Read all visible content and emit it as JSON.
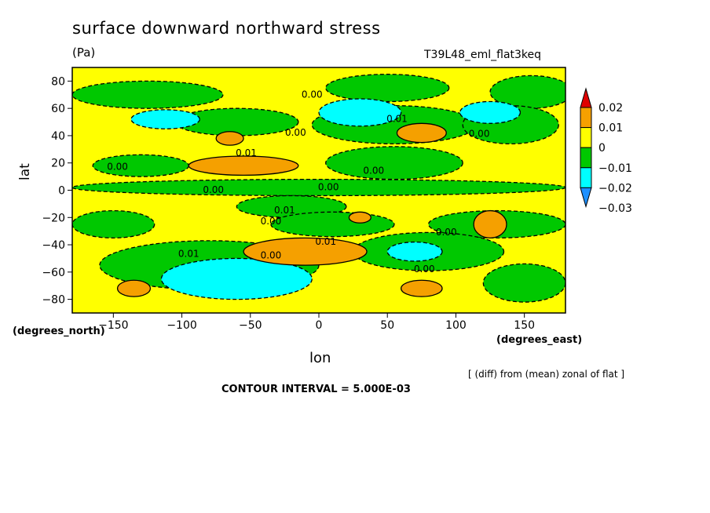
{
  "title": "surface downward northward stress",
  "units": "(Pa)",
  "run_label": "T39L48_eml_flat3keq",
  "note": "[ (diff) from (mean) zonal of flat ]",
  "contour_interval": "CONTOUR INTERVAL = 5.000E-03",
  "chart_data": {
    "type": "heatmap",
    "xlabel": "lon",
    "ylabel": "lat",
    "xunits": "(degrees_east)",
    "yunits": "(degrees_north)",
    "xlim": [
      -180,
      180
    ],
    "ylim": [
      -90,
      90
    ],
    "xticks": [
      -150,
      -100,
      -50,
      0,
      50,
      100,
      150
    ],
    "yticks": [
      80,
      60,
      40,
      20,
      0,
      -20,
      -40,
      -60,
      -80
    ],
    "colorbar": {
      "levels": [
        -0.03,
        -0.02,
        -0.01,
        0,
        0.01,
        0.02
      ],
      "labels": [
        "0.02",
        "0.01",
        "0",
        "−0.01",
        "−0.02",
        "−0.03"
      ],
      "colors": [
        "#1e90ff",
        "#00ffff",
        "#00c800",
        "#ffff00",
        "#f5a000",
        "#e00000"
      ]
    },
    "colors": {
      "neg2": "#00ffff",
      "neg1": "#00c800",
      "pos0": "#ffff00",
      "pos1": "#f5a000"
    },
    "contour_labels": [
      {
        "text": "0.00",
        "lon": -5,
        "lat": 68
      },
      {
        "text": "0.01",
        "lon": 57,
        "lat": 50
      },
      {
        "text": "0.00",
        "lon": -17,
        "lat": 40
      },
      {
        "text": "0.00",
        "lon": 117,
        "lat": 39
      },
      {
        "text": "0.01",
        "lon": -53,
        "lat": 25
      },
      {
        "text": "0.00",
        "lon": -147,
        "lat": 15
      },
      {
        "text": "0.00",
        "lon": 40,
        "lat": 12
      },
      {
        "text": "0.00",
        "lon": -77,
        "lat": -2
      },
      {
        "text": "0.00",
        "lon": 7,
        "lat": 0
      },
      {
        "text": "0.01",
        "lon": -25,
        "lat": -17
      },
      {
        "text": "0.00",
        "lon": -35,
        "lat": -25
      },
      {
        "text": "0.00",
        "lon": 93,
        "lat": -33
      },
      {
        "text": "0.01",
        "lon": 5,
        "lat": -40
      },
      {
        "text": "0.01",
        "lon": -95,
        "lat": -49
      },
      {
        "text": "0.00",
        "lon": -35,
        "lat": -50
      },
      {
        "text": "0.00",
        "lon": 77,
        "lat": -60
      }
    ],
    "regions": [
      {
        "level": "neg1",
        "lon": -125,
        "lat": 70,
        "rx": 55,
        "ry": 10
      },
      {
        "level": "neg1",
        "lon": 50,
        "lat": 75,
        "rx": 45,
        "ry": 10
      },
      {
        "level": "neg1",
        "lon": 155,
        "lat": 72,
        "rx": 30,
        "ry": 12
      },
      {
        "level": "neg1",
        "lon": -60,
        "lat": 50,
        "rx": 45,
        "ry": 10
      },
      {
        "level": "neg1",
        "lon": 55,
        "lat": 48,
        "rx": 60,
        "ry": 14
      },
      {
        "level": "neg1",
        "lon": 140,
        "lat": 48,
        "rx": 35,
        "ry": 14
      },
      {
        "level": "neg1",
        "lon": -130,
        "lat": 18,
        "rx": 35,
        "ry": 8
      },
      {
        "level": "neg1",
        "lon": 55,
        "lat": 20,
        "rx": 50,
        "ry": 12
      },
      {
        "level": "neg1",
        "lon": 0,
        "lat": 2,
        "rx": 180,
        "ry": 6
      },
      {
        "level": "neg1",
        "lon": -20,
        "lat": -12,
        "rx": 40,
        "ry": 8
      },
      {
        "level": "neg1",
        "lon": 10,
        "lat": -25,
        "rx": 45,
        "ry": 9
      },
      {
        "level": "neg1",
        "lon": 130,
        "lat": -25,
        "rx": 50,
        "ry": 10
      },
      {
        "level": "neg1",
        "lon": -150,
        "lat": -25,
        "rx": 30,
        "ry": 10
      },
      {
        "level": "neg1",
        "lon": -80,
        "lat": -55,
        "rx": 80,
        "ry": 18
      },
      {
        "level": "neg1",
        "lon": 80,
        "lat": -45,
        "rx": 55,
        "ry": 14
      },
      {
        "level": "neg1",
        "lon": 150,
        "lat": -68,
        "rx": 30,
        "ry": 14
      },
      {
        "level": "neg2",
        "lon": -112,
        "lat": 52,
        "rx": 25,
        "ry": 7
      },
      {
        "level": "neg2",
        "lon": 30,
        "lat": 57,
        "rx": 30,
        "ry": 10
      },
      {
        "level": "neg2",
        "lon": 125,
        "lat": 57,
        "rx": 22,
        "ry": 8
      },
      {
        "level": "neg2",
        "lon": -60,
        "lat": -65,
        "rx": 55,
        "ry": 15
      },
      {
        "level": "neg2",
        "lon": 70,
        "lat": -45,
        "rx": 20,
        "ry": 7
      },
      {
        "level": "pos1",
        "lon": -65,
        "lat": 38,
        "rx": 10,
        "ry": 5
      },
      {
        "level": "pos1",
        "lon": 75,
        "lat": 42,
        "rx": 18,
        "ry": 7
      },
      {
        "level": "pos1",
        "lon": -55,
        "lat": 18,
        "rx": 40,
        "ry": 7
      },
      {
        "level": "pos1",
        "lon": 30,
        "lat": -20,
        "rx": 8,
        "ry": 4
      },
      {
        "level": "pos1",
        "lon": 125,
        "lat": -25,
        "rx": 12,
        "ry": 10
      },
      {
        "level": "pos1",
        "lon": -10,
        "lat": -45,
        "rx": 45,
        "ry": 10
      },
      {
        "level": "pos1",
        "lon": -135,
        "lat": -72,
        "rx": 12,
        "ry": 6
      },
      {
        "level": "pos1",
        "lon": 75,
        "lat": -72,
        "rx": 15,
        "ry": 6
      }
    ]
  }
}
